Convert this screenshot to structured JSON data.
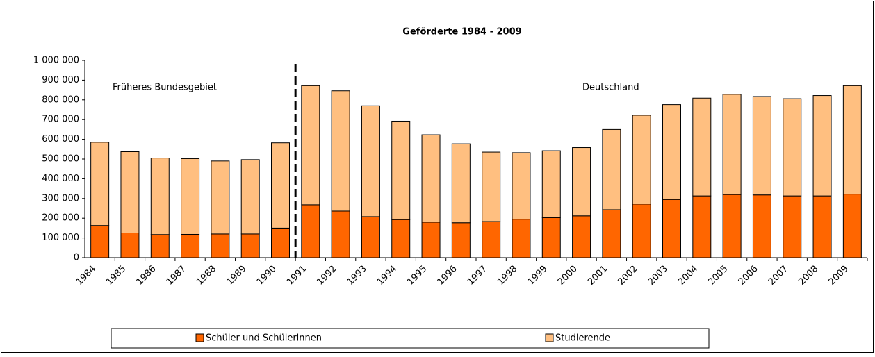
{
  "chart_data": {
    "type": "stacked_bar",
    "title": "Geförderte 1984 - 2009",
    "annotations": [
      "Früheres Bundesgebiet",
      "Deutschland"
    ],
    "categories": [
      "1984",
      "1985",
      "1986",
      "1987",
      "1988",
      "1989",
      "1990",
      "1991",
      "1992",
      "1993",
      "1994",
      "1995",
      "1996",
      "1997",
      "1998",
      "1999",
      "2000",
      "2001",
      "2002",
      "2003",
      "2004",
      "2005",
      "2006",
      "2007",
      "2008",
      "2009"
    ],
    "series": [
      {
        "name": "Schüler und Schülerinnen",
        "color": "#ff6600",
        "values": [
          163000,
          125000,
          117000,
          118000,
          120000,
          120000,
          150000,
          268000,
          236000,
          208000,
          193000,
          180000,
          177000,
          183000,
          195000,
          203000,
          212000,
          243000,
          272000,
          295000,
          313000,
          320000,
          318000,
          313000,
          313000,
          322000
        ]
      },
      {
        "name": "Studierende",
        "color": "#ffbf80",
        "values": [
          422000,
          412000,
          388000,
          384000,
          370000,
          377000,
          432000,
          604000,
          610000,
          562000,
          499000,
          443000,
          400000,
          352000,
          337000,
          339000,
          346000,
          407000,
          450000,
          481000,
          496000,
          508000,
          499000,
          493000,
          509000,
          550000
        ]
      }
    ],
    "ylim": [
      0,
      1000000
    ],
    "yticks": [
      0,
      {
        "value": 100000,
        "label": "100 000"
      },
      {
        "value": 200000,
        "label": "200 000"
      },
      {
        "value": 300000,
        "label": "300 000"
      },
      {
        "value": 400000,
        "label": "400 000"
      },
      {
        "value": 500000,
        "label": "500 000"
      },
      {
        "value": 600000,
        "label": "600 000"
      },
      {
        "value": 700000,
        "label": "700 000"
      },
      {
        "value": 800000,
        "label": "800 000"
      },
      {
        "value": 900000,
        "label": "900 000"
      },
      {
        "value": 1000000,
        "label": "1 000 000"
      }
    ],
    "legend": "bottom"
  }
}
